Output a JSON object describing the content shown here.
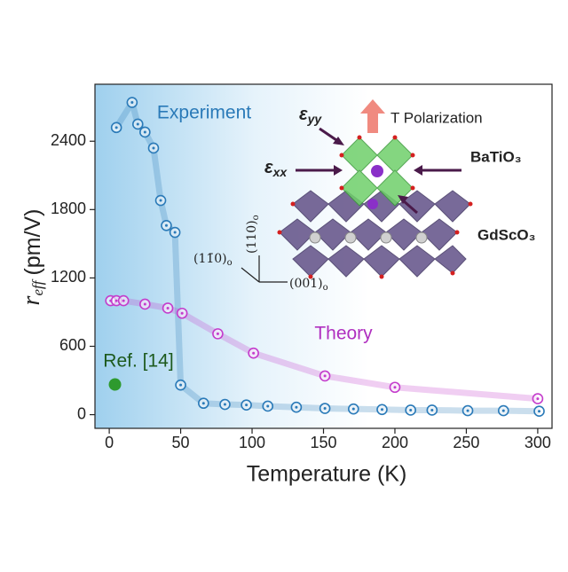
{
  "chart_data": {
    "type": "scatter",
    "xlabel": "Temperature (K)",
    "ylabel": {
      "symbol": "r",
      "sub": "eff",
      "unit": "(pm/V)"
    },
    "xlim": [
      -10,
      310
    ],
    "ylim": [
      -120,
      2900
    ],
    "xticks": [
      0,
      50,
      100,
      150,
      200,
      250,
      300
    ],
    "yticks": [
      0,
      600,
      1200,
      1800,
      2400
    ],
    "series": [
      {
        "name": "Experiment",
        "color": "#2a7ab8",
        "x": [
          5,
          16,
          20,
          25,
          31,
          36,
          40,
          46,
          50,
          66,
          81,
          96,
          111,
          131,
          151,
          171,
          191,
          211,
          226,
          251,
          276,
          301
        ],
        "values": [
          2520,
          2740,
          2550,
          2480,
          2340,
          1880,
          1660,
          1600,
          260,
          100,
          90,
          85,
          75,
          65,
          55,
          50,
          45,
          40,
          40,
          35,
          35,
          30
        ]
      },
      {
        "name": "Theory",
        "color": "#c43ccc",
        "x": [
          1,
          5,
          10,
          25,
          41,
          51,
          76,
          101,
          151,
          200,
          300
        ],
        "values": [
          1000,
          1000,
          1000,
          970,
          935,
          890,
          710,
          540,
          340,
          240,
          140
        ]
      },
      {
        "name": "Ref. [14]",
        "color": "#2e9a2e",
        "x": [
          4
        ],
        "values": [
          265
        ]
      }
    ],
    "inset": {
      "eps_yy": {
        "text": "ε",
        "sub": "yy"
      },
      "eps_xx": {
        "text": "ε",
        "sub": "xx"
      },
      "polarization": "T Polarization",
      "film": "BaTiO₃",
      "substrate": "GdScO₃",
      "axis_up": {
        "text": "(110)",
        "sub": "o"
      },
      "axis_diag": {
        "text": "(11̄0)",
        "sub": "o"
      },
      "axis_right": {
        "text": "(001)",
        "sub": "o"
      }
    }
  }
}
